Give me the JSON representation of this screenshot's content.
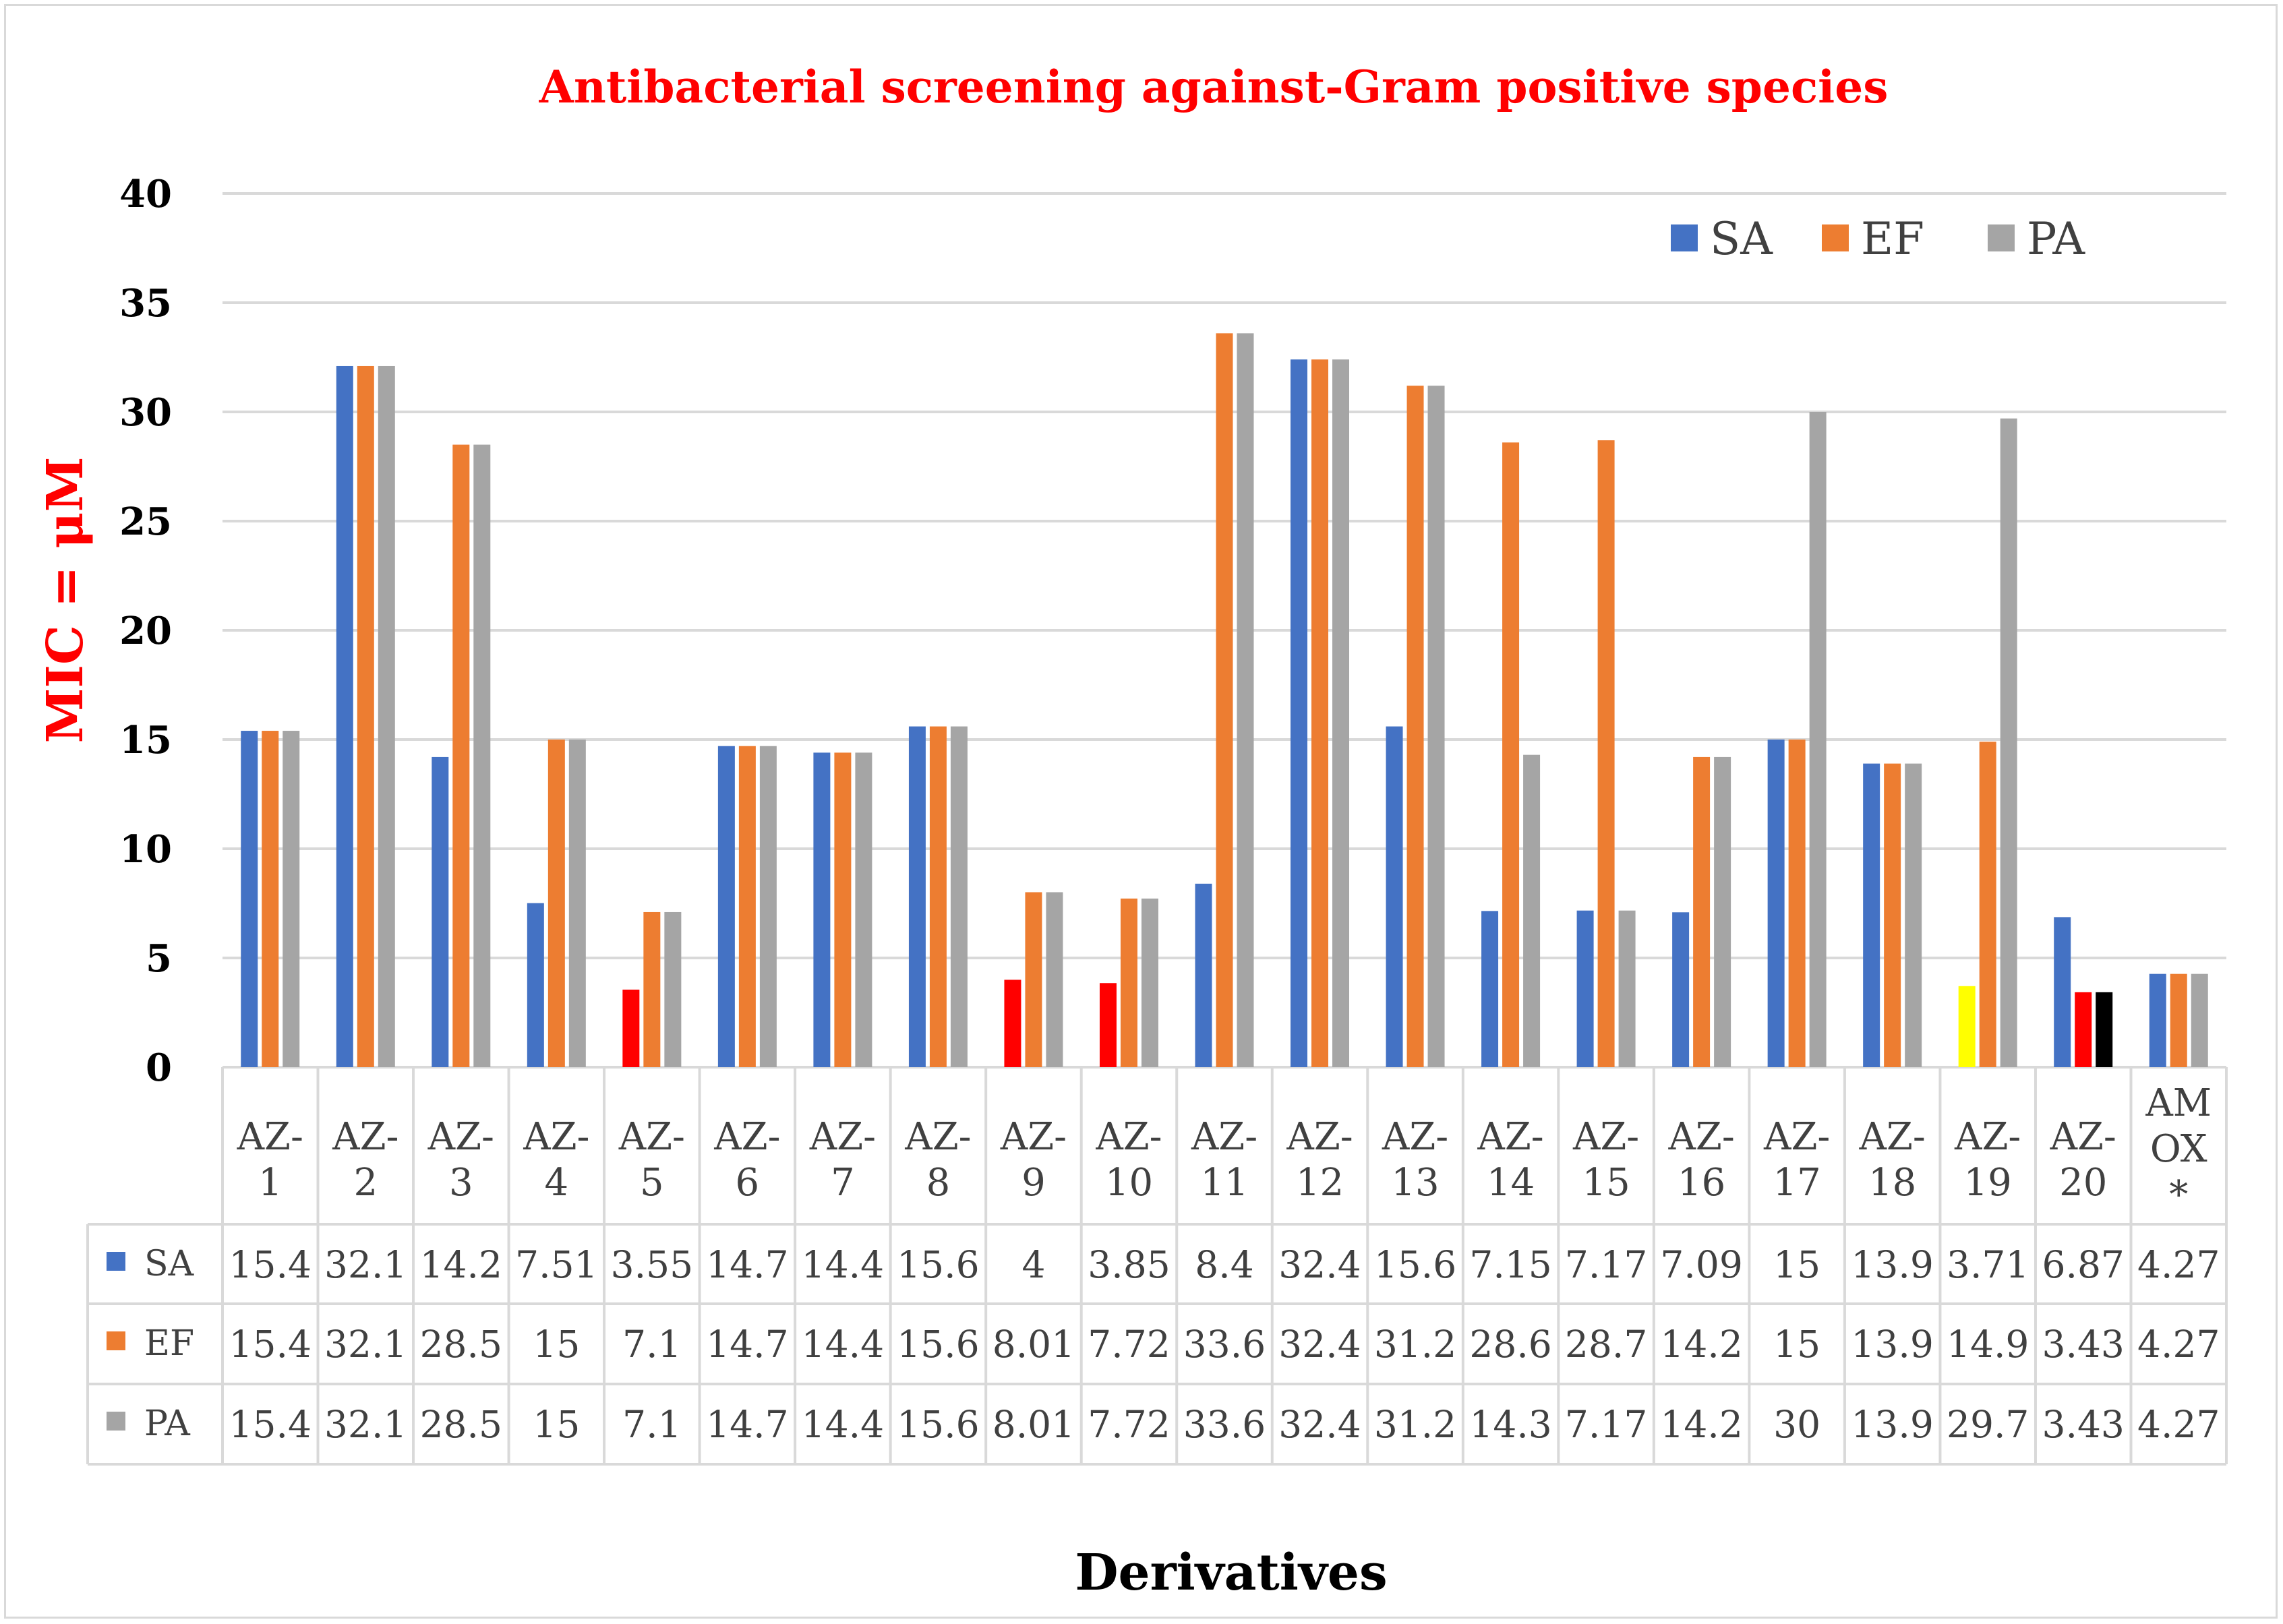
{
  "chart_data": {
    "type": "bar",
    "title": "Antibacterial screening against-Gram positive species",
    "xlabel": "Derivatives",
    "ylabel": "MIC = μM",
    "ylim": [
      0,
      40
    ],
    "yticks": [
      0,
      5,
      10,
      15,
      20,
      25,
      30,
      35,
      40
    ],
    "grid": true,
    "legend_position": "top-right",
    "categories": [
      [
        "AZ-",
        "1"
      ],
      [
        "AZ-",
        "2"
      ],
      [
        "AZ-",
        "3"
      ],
      [
        "AZ-",
        "4"
      ],
      [
        "AZ-",
        "5"
      ],
      [
        "AZ-",
        "6"
      ],
      [
        "AZ-",
        "7"
      ],
      [
        "AZ-",
        "8"
      ],
      [
        "AZ-",
        "9"
      ],
      [
        "AZ-",
        "10"
      ],
      [
        "AZ-",
        "11"
      ],
      [
        "AZ-",
        "12"
      ],
      [
        "AZ-",
        "13"
      ],
      [
        "AZ-",
        "14"
      ],
      [
        "AZ-",
        "15"
      ],
      [
        "AZ-",
        "16"
      ],
      [
        "AZ-",
        "17"
      ],
      [
        "AZ-",
        "18"
      ],
      [
        "AZ-",
        "19"
      ],
      [
        "AZ-",
        "20"
      ],
      [
        "AM",
        "OX",
        "*"
      ]
    ],
    "series": [
      {
        "name": "SA",
        "color": "#4472c4",
        "values": [
          15.4,
          32.1,
          14.2,
          7.51,
          3.55,
          14.7,
          14.4,
          15.6,
          4,
          3.85,
          8.4,
          32.4,
          15.6,
          7.15,
          7.17,
          7.09,
          15,
          13.9,
          3.71,
          6.87,
          4.27
        ],
        "labels": [
          "15.4",
          "32.1",
          "14.2",
          "7.51",
          "3.55",
          "14.7",
          "14.4",
          "15.6",
          "4",
          "3.85",
          "8.4",
          "32.4",
          "15.6",
          "7.15",
          "7.17",
          "7.09",
          "15",
          "13.9",
          "3.71",
          "6.87",
          "4.27"
        ]
      },
      {
        "name": "EF",
        "color": "#ed7d31",
        "values": [
          15.4,
          32.1,
          28.5,
          15,
          7.1,
          14.7,
          14.4,
          15.6,
          8.01,
          7.72,
          33.6,
          32.4,
          31.2,
          28.6,
          28.7,
          14.2,
          15,
          13.9,
          14.9,
          3.43,
          4.27
        ],
        "labels": [
          "15.4",
          "32.1",
          "28.5",
          "15",
          "7.1",
          "14.7",
          "14.4",
          "15.6",
          "8.01",
          "7.72",
          "33.6",
          "32.4",
          "31.2",
          "28.6",
          "28.7",
          "14.2",
          "15",
          "13.9",
          "14.9",
          "3.43",
          "4.27"
        ]
      },
      {
        "name": "PA",
        "color": "#a5a5a5",
        "values": [
          15.4,
          32.1,
          28.5,
          15,
          7.1,
          14.7,
          14.4,
          15.6,
          8.01,
          7.72,
          33.6,
          32.4,
          31.2,
          14.3,
          7.17,
          14.2,
          30,
          13.9,
          29.7,
          3.43,
          4.27
        ],
        "labels": [
          "15.4",
          "32.1",
          "28.5",
          "15",
          "7.1",
          "14.7",
          "14.4",
          "15.6",
          "8.01",
          "7.72",
          "33.6",
          "32.4",
          "31.2",
          "14.3",
          "7.17",
          "14.2",
          "30",
          "13.9",
          "29.7",
          "3.43",
          "4.27"
        ]
      }
    ],
    "highlighted_bars": [
      {
        "series": 0,
        "index": 4,
        "color": "#ff0000"
      },
      {
        "series": 0,
        "index": 8,
        "color": "#ff0000"
      },
      {
        "series": 0,
        "index": 9,
        "color": "#ff0000"
      },
      {
        "series": 0,
        "index": 18,
        "color": "#ffff00"
      },
      {
        "series": 1,
        "index": 19,
        "color": "#ff0000"
      },
      {
        "series": 2,
        "index": 19,
        "color": "#000000"
      }
    ]
  }
}
